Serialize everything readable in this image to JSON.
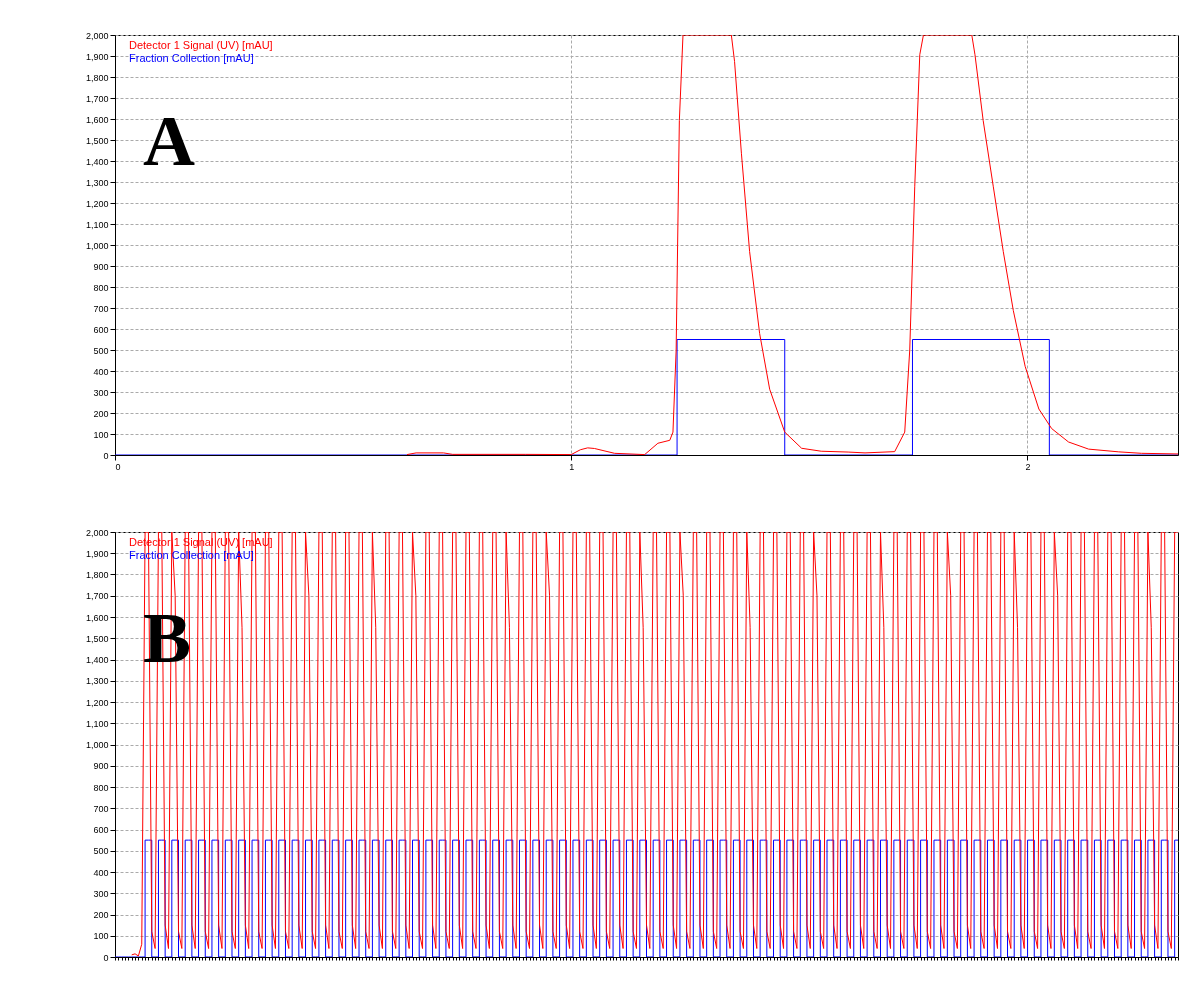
{
  "chart_data": [
    {
      "type": "line",
      "annotations": [
        "A"
      ],
      "legend": "top left",
      "grid": true,
      "xlim": [
        0,
        2.33
      ],
      "xticks": [
        0,
        1,
        2
      ],
      "ylim": [
        0,
        2000
      ],
      "yticks": [
        0,
        100,
        200,
        300,
        400,
        500,
        600,
        700,
        800,
        900,
        {
          "value": 1000,
          "label": "1,000"
        },
        {
          "value": 1100,
          "label": "1,100"
        },
        {
          "value": 1200,
          "label": "1,200"
        },
        {
          "value": 1300,
          "label": "1,300"
        },
        {
          "value": 1400,
          "label": "1,400"
        },
        {
          "value": 1500,
          "label": "1,500"
        },
        {
          "value": 1600,
          "label": "1,600"
        },
        {
          "value": 1700,
          "label": "1,700"
        },
        {
          "value": 1800,
          "label": "1,800"
        },
        {
          "value": 1900,
          "label": "1,900"
        },
        {
          "value": 2000,
          "label": "2,000"
        }
      ],
      "series": [
        {
          "name": "Detector 1 Signal (UV) [mAU]",
          "color": "#ff0000",
          "x": [
            0.64,
            0.66,
            0.72,
            0.74,
            0.9,
            1.0,
            1.02,
            1.036,
            1.051,
            1.095,
            1.161,
            1.19,
            1.216,
            1.223,
            1.23,
            1.237,
            1.245,
            1.351,
            1.358,
            1.373,
            1.391,
            1.413,
            1.435,
            1.468,
            1.505,
            1.548,
            1.607,
            1.644,
            1.709,
            1.731,
            1.742,
            1.753,
            1.764,
            1.772,
            1.878,
            1.885,
            1.903,
            1.925,
            1.947,
            1.969,
            1.995,
            2.025,
            2.053,
            2.09,
            2.134,
            2.2,
            2.25,
            2.33
          ],
          "values": [
            2,
            10,
            10,
            3,
            3,
            2,
            25,
            34,
            31,
            8,
            2,
            56,
            70,
            109,
            500,
            1592,
            2000,
            2000,
            1874,
            1437,
            969,
            578,
            313,
            109,
            32,
            18,
            14,
            10,
            16,
            109,
            500,
            1280,
            1906,
            2000,
            2000,
            1906,
            1592,
            1280,
            969,
            688,
            422,
            219,
            126,
            62,
            28,
            15,
            8,
            5
          ]
        },
        {
          "name": "Fraction Collection [mAU]",
          "color": "#0000ff",
          "type": "step",
          "x": [
            0,
            1.232,
            1.468,
            1.748,
            2.048,
            2.33
          ],
          "values": [
            0,
            550,
            0,
            550,
            0,
            0
          ]
        }
      ]
    },
    {
      "type": "line",
      "annotations": [
        "B"
      ],
      "legend": "top left",
      "grid": "y",
      "categories": [
        null,
        null,
        null,
        null,
        null,
        null,
        null,
        null,
        null,
        null,
        null,
        null,
        null,
        null,
        null,
        null,
        null,
        null,
        null,
        null,
        null,
        null,
        null,
        null,
        null,
        null,
        null,
        null,
        null,
        null,
        null,
        null,
        null,
        null,
        null,
        null,
        null,
        null,
        null,
        null,
        null,
        null,
        null,
        null,
        null,
        null,
        null,
        null,
        null,
        null,
        null,
        null,
        null,
        null,
        null,
        null,
        null,
        null,
        null,
        null,
        null,
        null,
        null,
        null,
        null,
        null,
        null,
        null,
        null,
        null,
        null,
        null,
        null,
        null,
        null,
        null,
        null,
        null,
        null,
        null,
        null,
        null,
        null,
        null,
        null,
        null,
        null,
        null,
        null,
        null,
        null,
        null,
        null,
        null,
        null,
        null,
        null,
        null,
        null,
        null,
        null,
        null,
        null,
        null,
        null,
        null,
        null,
        null,
        null,
        null,
        null,
        null,
        null,
        null,
        null,
        null,
        null,
        null,
        null,
        null,
        null,
        null,
        null,
        null,
        null,
        null,
        null,
        null,
        null,
        null,
        null,
        null,
        null,
        null,
        null,
        null,
        null,
        null,
        null,
        null,
        null,
        null,
        null,
        null,
        null,
        null,
        null,
        null,
        null,
        null,
        null,
        null,
        null,
        null,
        null,
        null,
        null,
        null,
        null,
        null,
        null,
        null,
        null,
        null,
        null,
        null,
        null,
        null,
        null,
        null,
        null,
        null,
        null,
        null,
        null,
        null,
        null,
        null,
        null,
        null,
        null,
        null,
        null,
        null,
        null,
        null,
        null,
        null,
        null,
        null,
        null,
        null,
        null,
        null,
        null,
        null,
        null,
        null,
        null,
        null,
        null,
        null,
        null,
        null,
        null,
        null,
        null,
        null,
        null,
        null,
        null,
        null,
        null,
        null,
        null,
        null,
        null,
        null,
        null,
        null,
        null,
        null,
        null,
        null,
        null,
        null,
        null,
        null,
        null,
        null,
        null,
        null,
        null,
        null,
        null,
        null,
        null,
        null,
        null,
        null,
        null,
        null,
        null,
        null,
        null,
        null,
        null,
        null,
        null,
        null,
        null,
        null,
        null,
        null,
        null,
        null,
        null,
        null,
        null,
        null,
        null,
        null,
        null,
        null,
        null,
        null,
        null,
        null,
        null,
        null,
        null,
        null,
        null,
        null,
        null,
        null,
        null,
        null,
        null,
        null,
        null,
        null,
        null,
        null,
        null,
        null,
        null,
        null,
        null,
        null,
        null,
        null,
        null,
        null,
        null,
        null,
        null,
        null,
        null,
        null,
        null,
        null,
        null,
        null,
        null,
        null,
        null,
        null,
        null,
        null,
        null,
        null,
        null,
        null,
        null,
        null,
        null,
        null,
        null
      ],
      "ylim": [
        0,
        2000
      ],
      "yticks": [
        0,
        100,
        200,
        300,
        400,
        500,
        600,
        700,
        800,
        900,
        {
          "value": 1000,
          "label": "1,000"
        },
        {
          "value": 1100,
          "label": "1,100"
        },
        {
          "value": 1200,
          "label": "1,200"
        },
        {
          "value": 1300,
          "label": "1,300"
        },
        {
          "value": 1400,
          "label": "1,400"
        },
        {
          "value": 1500,
          "label": "1,500"
        },
        {
          "value": 1600,
          "label": "1,600"
        },
        {
          "value": 1700,
          "label": "1,700"
        },
        {
          "value": 1800,
          "label": "1,800"
        },
        {
          "value": 1900,
          "label": "1,900"
        },
        {
          "value": 2000,
          "label": "2,000"
        }
      ],
      "series": [
        {
          "name": "Detector 1 Signal (UV) [mAU]",
          "color": "#ff0000",
          "values": [
            null,
            null,
            null,
            null,
            null,
            10,
            15,
            5,
            60,
            2000,
            2000,
            120,
            40,
            2000,
            2000,
            150,
            40,
            2000,
            1700,
            120,
            40,
            2000,
            2000,
            150,
            40,
            2000,
            2000,
            120,
            40,
            2000,
            2000,
            150,
            40,
            2000,
            2000,
            120,
            40,
            2000,
            1550,
            150,
            40,
            2000,
            2000,
            120,
            40,
            2000,
            2000,
            150,
            40,
            2000,
            2000,
            120,
            40,
            2000,
            2000,
            150,
            40,
            2000,
            1700,
            120,
            40,
            2000,
            2000,
            150,
            40,
            2000,
            2000,
            120,
            40,
            2000,
            2000,
            150,
            40,
            2000,
            2000,
            120,
            40,
            2000,
            1550,
            150,
            40,
            2000,
            2000,
            120,
            40,
            2000,
            2000,
            150,
            40,
            2000,
            1700,
            120,
            40,
            2000,
            2000,
            150,
            40,
            2000,
            2000,
            120,
            40,
            2000,
            2000,
            150,
            40,
            2000,
            2000,
            120,
            40,
            2000,
            2000,
            150,
            40,
            2000,
            2000,
            120,
            40,
            2000,
            1550,
            150,
            40,
            2000,
            2000,
            120,
            40,
            2000,
            2000,
            150,
            40,
            2000,
            1700,
            120,
            40,
            2000,
            2000,
            150,
            40,
            2000,
            2000,
            120,
            40,
            2000,
            2000,
            150,
            40,
            2000,
            2000,
            120,
            40,
            2000,
            2000,
            150,
            40,
            2000,
            2000,
            120,
            40,
            2000,
            1550,
            150,
            40,
            2000,
            2000,
            120,
            40,
            2000,
            2000,
            150,
            40,
            2000,
            1700,
            120,
            40,
            2000,
            2000,
            150,
            40,
            2000,
            2000,
            120,
            40,
            2000,
            2000,
            150,
            40,
            2000,
            2000,
            120,
            40,
            2000,
            1550,
            150,
            40,
            2000,
            2000,
            120,
            40,
            2000,
            2000,
            150,
            40,
            2000,
            2000,
            120,
            40,
            2000,
            2000,
            150,
            40,
            2000,
            1700,
            120,
            40,
            2000,
            2000,
            150,
            40,
            2000,
            2000,
            120,
            40,
            2000,
            2000,
            150,
            40,
            2000,
            2000,
            120,
            40,
            2000,
            1550,
            150,
            40,
            2000,
            2000,
            120,
            40,
            2000,
            2000,
            150,
            40,
            2000,
            2000,
            120,
            40,
            2000,
            2000,
            150,
            40,
            2000,
            1700,
            120,
            40,
            2000,
            2000,
            150,
            40,
            2000,
            2000,
            120,
            40,
            2000,
            2000,
            150,
            40,
            2000,
            2000,
            120,
            40,
            2000,
            1550,
            150,
            40,
            2000,
            2000,
            120,
            40,
            2000,
            2000,
            150,
            40,
            2000,
            1700,
            120,
            40,
            2000,
            2000,
            150,
            40,
            2000,
            2000,
            120,
            40,
            2000,
            2000,
            150,
            40,
            2000,
            2000,
            120,
            40,
            2000,
            2000,
            150,
            40,
            2000,
            2000,
            120,
            40,
            2000,
            1550,
            150,
            40,
            2000,
            2000,
            120,
            40,
            2000,
            2000
          ]
        },
        {
          "name": "Fraction Collection [mAU]",
          "color": "#0000ff",
          "type": "step",
          "values": [
            0,
            0,
            0,
            0,
            0,
            0,
            0,
            0,
            0,
            550,
            550,
            0,
            0,
            550,
            550,
            0,
            0,
            550,
            550,
            0,
            0,
            550,
            550,
            0,
            0,
            550,
            550,
            0,
            0,
            550,
            550,
            0,
            0,
            550,
            550,
            0,
            0,
            550,
            550,
            0,
            0,
            550,
            550,
            0,
            0,
            550,
            550,
            0,
            0,
            550,
            550,
            0,
            0,
            550,
            550,
            0,
            0,
            550,
            550,
            0,
            0,
            550,
            550,
            0,
            0,
            550,
            550,
            0,
            0,
            550,
            550,
            0,
            0,
            550,
            550,
            0,
            0,
            550,
            550,
            0,
            0,
            550,
            550,
            0,
            0,
            550,
            550,
            0,
            0,
            550,
            550,
            0,
            0,
            550,
            550,
            0,
            0,
            550,
            550,
            0,
            0,
            550,
            550,
            0,
            0,
            550,
            550,
            0,
            0,
            550,
            550,
            0,
            0,
            550,
            550,
            0,
            0,
            550,
            550,
            0,
            0,
            550,
            550,
            0,
            0,
            550,
            550,
            0,
            0,
            550,
            550,
            0,
            0,
            550,
            550,
            0,
            0,
            550,
            550,
            0,
            0,
            550,
            550,
            0,
            0,
            550,
            550,
            0,
            0,
            550,
            550,
            0,
            0,
            550,
            550,
            0,
            0,
            550,
            550,
            0,
            0,
            550,
            550,
            0,
            0,
            550,
            550,
            0,
            0,
            550,
            550,
            0,
            0,
            550,
            550,
            0,
            0,
            550,
            550,
            0,
            0,
            550,
            550,
            0,
            0,
            550,
            550,
            0,
            0,
            550,
            550,
            0,
            0,
            550,
            550,
            0,
            0,
            550,
            550,
            0,
            0,
            550,
            550,
            0,
            0,
            550,
            550,
            0,
            0,
            550,
            550,
            0,
            0,
            550,
            550,
            0,
            0,
            550,
            550,
            0,
            0,
            550,
            550,
            0,
            0,
            550,
            550,
            0,
            0,
            550,
            550,
            0,
            0,
            550,
            550,
            0,
            0,
            550,
            550,
            0,
            0,
            550,
            550,
            0,
            0,
            550,
            550,
            0,
            0,
            550,
            550,
            0,
            0,
            550,
            550,
            0,
            0,
            550,
            550,
            0,
            0,
            550,
            550,
            0,
            0,
            550,
            550,
            0,
            0,
            550,
            550,
            0,
            0,
            550,
            550,
            0,
            0,
            550,
            550,
            0,
            0,
            550,
            550,
            0,
            0,
            550,
            550,
            0,
            0,
            550,
            550,
            0,
            0,
            550,
            550,
            0,
            0,
            550,
            550,
            0,
            0,
            550,
            550,
            0,
            0,
            550,
            550,
            0,
            0,
            550,
            550,
            0,
            0,
            550,
            550,
            0,
            0,
            550,
            550
          ]
        }
      ]
    }
  ]
}
